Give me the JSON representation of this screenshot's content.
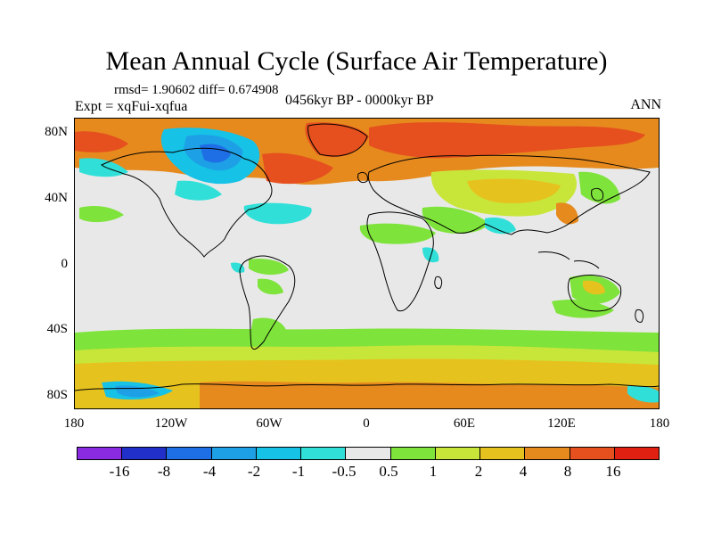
{
  "title": "Mean Annual Cycle (Surface Air Temperature)",
  "stats_line": "rmsd= 1.90602 diff= 0.674908",
  "experiment": "Expt = xqFui-xqfua",
  "period": "0456kyr BP - 0000kyr BP",
  "season": "ANN",
  "y_ticks": [
    "80N",
    "40N",
    "0",
    "40S",
    "80S"
  ],
  "x_ticks": [
    "180",
    "120W",
    "60W",
    "0",
    "60E",
    "120E",
    "180"
  ],
  "colorbar": {
    "labels": [
      "-16",
      "-8",
      "-4",
      "-2",
      "-1",
      "-0.5",
      "0.5",
      "1",
      "2",
      "4",
      "8",
      "16"
    ],
    "colors": [
      "#8a2be2",
      "#2030c8",
      "#1e6ee6",
      "#1ea0e6",
      "#16c2e6",
      "#30e0d8",
      "#e8e8e8",
      "#7ee33a",
      "#c8e63a",
      "#e6c21e",
      "#e68a1e",
      "#e6501e",
      "#e02010"
    ]
  },
  "field_colors": {
    "neutral": "#e8e8e8",
    "warm_light": "#7ee33a",
    "warm_mid": "#c8e63a",
    "warm_high": "#e6c21e",
    "warm_strong": "#e68a1e",
    "warm_extreme": "#e6501e",
    "cool_light": "#30e0d8",
    "cool_mid": "#16c2e6",
    "cool_strong": "#1ea0e6",
    "cool_deep": "#1e6ee6"
  }
}
